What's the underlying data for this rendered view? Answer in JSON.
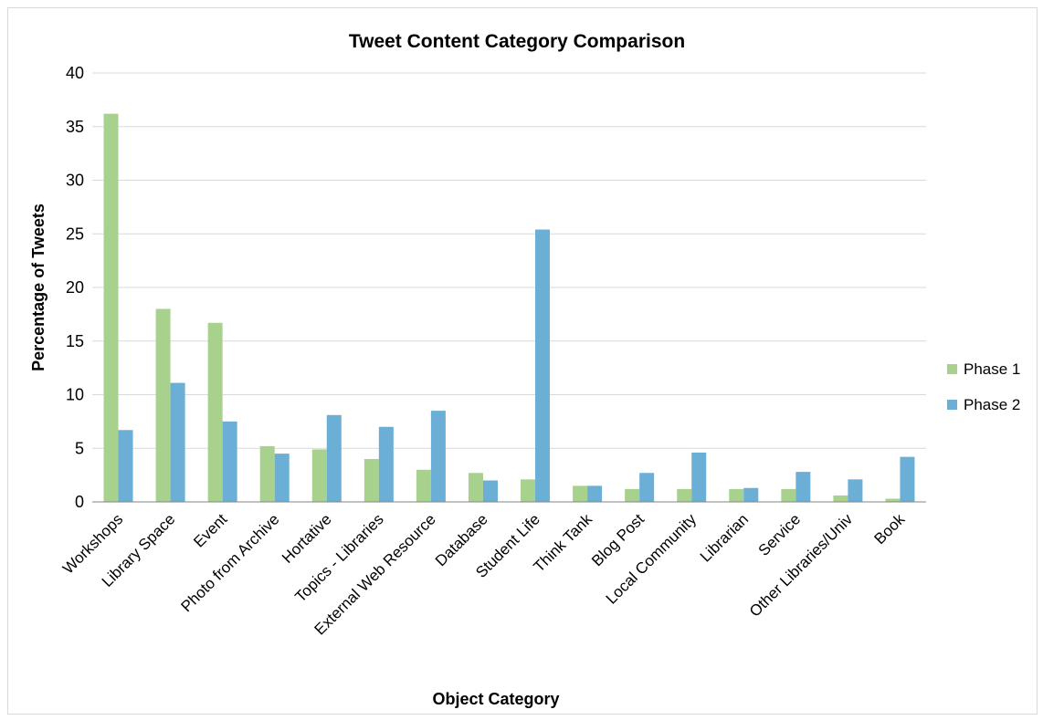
{
  "chart_data": {
    "type": "bar",
    "title": "Tweet Content Category Comparison",
    "xlabel": "Object Category",
    "ylabel": "Percentage of Tweets",
    "ylim": [
      0,
      40
    ],
    "yticks": [
      0,
      5,
      10,
      15,
      20,
      25,
      30,
      35,
      40
    ],
    "grid": true,
    "legend_position": "right",
    "categories": [
      "Workshops",
      "Library Space",
      "Event",
      "Photo from Archive",
      "Hortative",
      "Topics - Libraries",
      "External Web Resource",
      "Database",
      "Student Life",
      "Think Tank",
      "Blog Post",
      "Local Community",
      "Librarian",
      "Service",
      "Other Libraries/Univ",
      "Book"
    ],
    "series": [
      {
        "name": "Phase 1",
        "color": "#a9d18e",
        "values": [
          36.2,
          18.0,
          16.7,
          5.2,
          4.9,
          4.0,
          3.0,
          2.7,
          2.1,
          1.5,
          1.2,
          1.2,
          1.2,
          1.2,
          0.6,
          0.3
        ]
      },
      {
        "name": "Phase 2",
        "color": "#6baed6",
        "values": [
          6.7,
          11.1,
          7.5,
          4.5,
          8.1,
          7.0,
          8.5,
          2.0,
          25.4,
          1.5,
          2.7,
          4.6,
          1.3,
          2.8,
          2.1,
          4.2
        ]
      }
    ]
  }
}
